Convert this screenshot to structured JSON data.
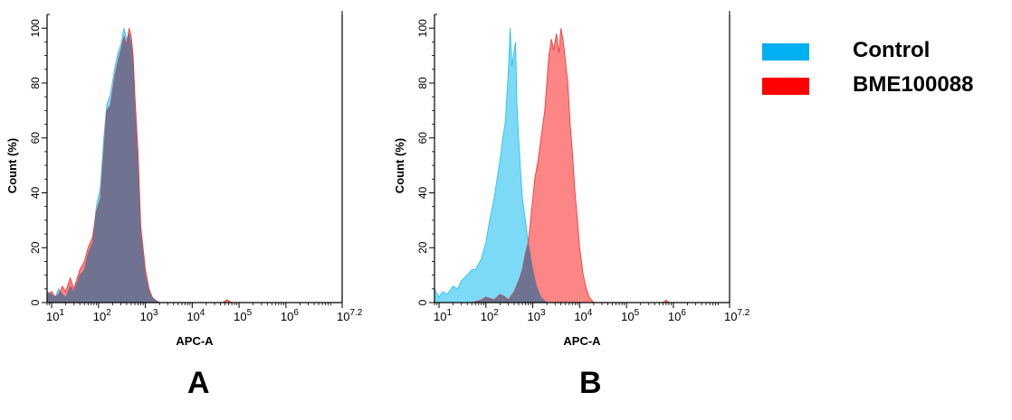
{
  "colors": {
    "control": "#1ec0ef",
    "sample": "#fa2d2d",
    "overlap": "#5f7394",
    "axis": "#000000"
  },
  "legend": {
    "items": [
      {
        "label": "Control",
        "color": "#00b0f0"
      },
      {
        "label": "BME100088",
        "color": "#ff0000"
      }
    ]
  },
  "panels": [
    {
      "letter": "A"
    },
    {
      "letter": "B"
    }
  ],
  "chart_data": [
    {
      "type": "area",
      "panel": "A",
      "xlabel": "APC-A",
      "ylabel": "Count (%)",
      "xscale": "log",
      "xlim": [
        8,
        15848931
      ],
      "ylim": [
        0,
        105
      ],
      "x_ticks": [
        {
          "base": "10",
          "exp": "1",
          "value": 10
        },
        {
          "base": "10",
          "exp": "2",
          "value": 100
        },
        {
          "base": "10",
          "exp": "3",
          "value": 1000
        },
        {
          "base": "10",
          "exp": "4",
          "value": 10000
        },
        {
          "base": "10",
          "exp": "5",
          "value": 100000
        },
        {
          "base": "10",
          "exp": "6",
          "value": 1000000
        },
        {
          "base": "10",
          "exp": "7.2",
          "value": 15848931
        }
      ],
      "y_ticks": [
        0,
        20,
        40,
        60,
        80,
        100
      ],
      "series": [
        {
          "name": "Control",
          "x": [
            8,
            10,
            12,
            14,
            17,
            20,
            25,
            30,
            40,
            50,
            60,
            75,
            90,
            110,
            130,
            150,
            180,
            220,
            260,
            300,
            350,
            400,
            450,
            500,
            550,
            600,
            700,
            800,
            1000,
            1200,
            1400,
            1600,
            2000
          ],
          "y": [
            4,
            3,
            2,
            5,
            3,
            2,
            6,
            4,
            10,
            12,
            18,
            22,
            35,
            42,
            60,
            72,
            76,
            85,
            91,
            94,
            100,
            96,
            98,
            94,
            88,
            70,
            50,
            25,
            10,
            4,
            2,
            1,
            0
          ]
        },
        {
          "name": "BME100088",
          "x": [
            8,
            10,
            12,
            14,
            17,
            20,
            25,
            30,
            40,
            50,
            60,
            75,
            90,
            110,
            130,
            150,
            180,
            220,
            260,
            300,
            350,
            400,
            450,
            500,
            550,
            600,
            700,
            800,
            1000,
            1200,
            1400,
            1600,
            2000,
            45000,
            55000,
            70000
          ],
          "y": [
            3,
            4,
            2,
            3,
            6,
            4,
            9,
            5,
            12,
            15,
            20,
            24,
            33,
            38,
            55,
            70,
            72,
            82,
            88,
            92,
            97,
            94,
            100,
            97,
            90,
            75,
            55,
            28,
            12,
            5,
            2,
            1,
            0,
            0,
            1,
            0
          ]
        }
      ]
    },
    {
      "type": "area",
      "panel": "B",
      "xlabel": "APC-A",
      "ylabel": "Count (%)",
      "xscale": "log",
      "xlim": [
        8,
        15848931
      ],
      "ylim": [
        0,
        105
      ],
      "x_ticks": [
        {
          "base": "10",
          "exp": "1",
          "value": 10
        },
        {
          "base": "10",
          "exp": "2",
          "value": 100
        },
        {
          "base": "10",
          "exp": "3",
          "value": 1000
        },
        {
          "base": "10",
          "exp": "4",
          "value": 10000
        },
        {
          "base": "10",
          "exp": "5",
          "value": 100000
        },
        {
          "base": "10",
          "exp": "6",
          "value": 1000000
        },
        {
          "base": "10",
          "exp": "7.2",
          "value": 15848931
        }
      ],
      "y_ticks": [
        0,
        20,
        40,
        60,
        80,
        100
      ],
      "series": [
        {
          "name": "Control",
          "x": [
            8,
            10,
            12,
            15,
            20,
            25,
            30,
            40,
            50,
            60,
            80,
            100,
            120,
            150,
            180,
            200,
            230,
            260,
            300,
            330,
            360,
            400,
            430,
            460,
            500,
            550,
            600,
            700,
            800,
            1000,
            1200,
            1500,
            2000
          ],
          "y": [
            5,
            2,
            4,
            3,
            6,
            5,
            8,
            10,
            12,
            12,
            16,
            22,
            30,
            38,
            47,
            52,
            60,
            66,
            84,
            100,
            86,
            92,
            95,
            72,
            60,
            48,
            38,
            30,
            22,
            12,
            6,
            2,
            0
          ]
        },
        {
          "name": "BME100088",
          "x": [
            8,
            50,
            80,
            100,
            150,
            200,
            260,
            300,
            400,
            500,
            600,
            700,
            800,
            900,
            1000,
            1100,
            1300,
            1500,
            1800,
            2000,
            2200,
            2500,
            2800,
            3200,
            3600,
            4000,
            4500,
            5000,
            5600,
            6300,
            7000,
            8000,
            9000,
            10000,
            12000,
            14000,
            16000,
            20000,
            600000,
            700000,
            800000
          ],
          "y": [
            0,
            0,
            1,
            2,
            1,
            3,
            2,
            1,
            4,
            8,
            12,
            18,
            22,
            30,
            38,
            45,
            52,
            60,
            70,
            80,
            90,
            96,
            92,
            98,
            91,
            100,
            95,
            88,
            80,
            65,
            55,
            40,
            30,
            20,
            10,
            5,
            2,
            0,
            0,
            1,
            0
          ]
        }
      ]
    }
  ]
}
